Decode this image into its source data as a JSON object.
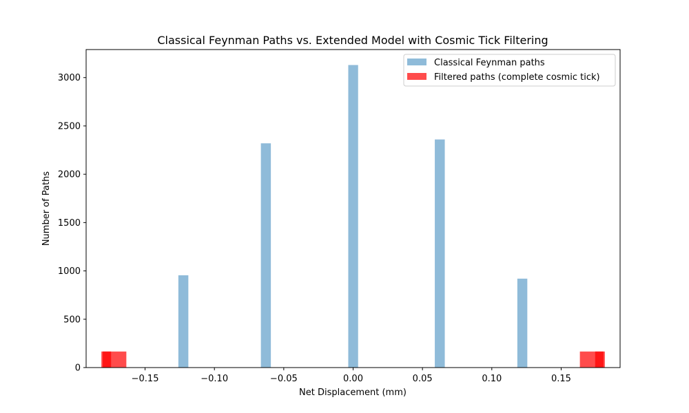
{
  "chart_data": {
    "type": "bar",
    "title": "Classical Feynman Paths vs. Extended Model with Cosmic Tick Filtering",
    "xlabel": "Net Displacement (mm)",
    "ylabel": "Number of Paths",
    "xlim": [
      -0.1925,
      0.1925
    ],
    "ylim": [
      0,
      3290
    ],
    "x_ticks": [
      -0.15,
      -0.1,
      -0.05,
      0.0,
      0.05,
      0.1,
      0.15
    ],
    "x_tick_labels": [
      "−0.15",
      "−0.10",
      "−0.05",
      "0.00",
      "0.05",
      "0.10",
      "0.15"
    ],
    "y_ticks": [
      0,
      500,
      1000,
      1500,
      2000,
      2500,
      3000
    ],
    "y_tick_labels": [
      "0",
      "500",
      "1000",
      "1500",
      "2000",
      "2500",
      "3000"
    ],
    "grid": false,
    "legend_position": "top-right",
    "series": [
      {
        "name": "Classical Feynman paths",
        "color": "#1f77b4",
        "alpha": 0.5,
        "bars": [
          {
            "x_start": -0.126,
            "x_end": -0.1188,
            "value": 955
          },
          {
            "x_start": -0.0665,
            "x_end": -0.0593,
            "value": 2320
          },
          {
            "x_start": -0.0035,
            "x_end": 0.0036,
            "value": 3130
          },
          {
            "x_start": 0.0589,
            "x_end": 0.0661,
            "value": 2360
          },
          {
            "x_start": 0.1184,
            "x_end": 0.1256,
            "value": 920
          }
        ]
      },
      {
        "name": "Filtered paths (complete cosmic tick)",
        "color": "#ff0000",
        "alpha": 0.7,
        "bars": [
          {
            "x_start": -0.1815,
            "x_end": -0.1745,
            "value": 166
          },
          {
            "x_start": -0.1805,
            "x_end": -0.1635,
            "value": 166
          },
          {
            "x_start": 0.1635,
            "x_end": 0.1805,
            "value": 166
          },
          {
            "x_start": 0.1745,
            "x_end": 0.1815,
            "value": 166
          }
        ]
      }
    ]
  }
}
